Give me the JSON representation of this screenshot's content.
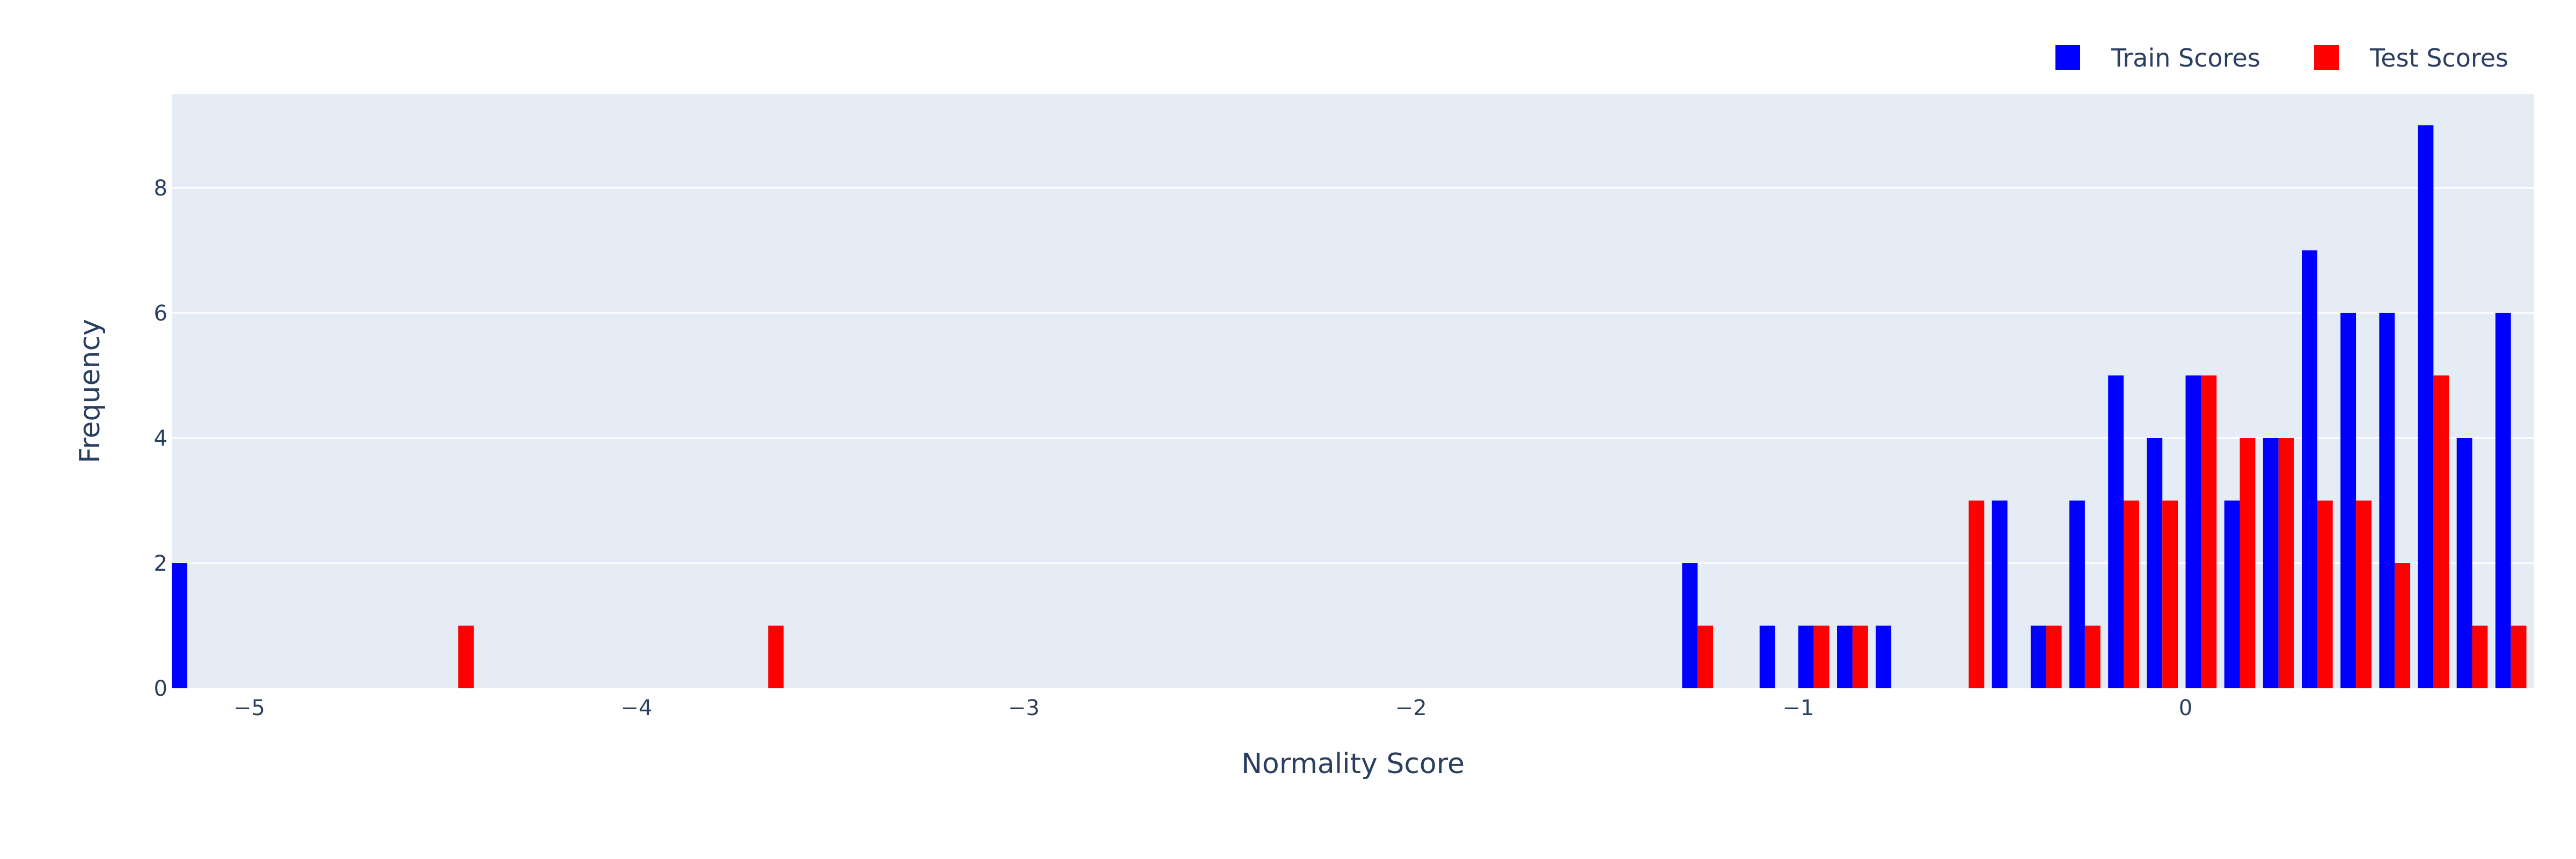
{
  "chart_data": {
    "type": "bar",
    "xlabel": "Normality Score",
    "ylabel": "Frequency",
    "xlim": [
      -5.2,
      0.9
    ],
    "ylim": [
      0,
      9.5
    ],
    "x_ticks": [
      -5,
      -4,
      -3,
      -2,
      -1,
      0
    ],
    "x_tick_labels": [
      "−5",
      "−4",
      "−3",
      "−2",
      "−1",
      "0"
    ],
    "y_ticks": [
      0,
      2,
      4,
      6,
      8
    ],
    "y_tick_labels": [
      "0",
      "2",
      "4",
      "6",
      "8"
    ],
    "bin_width": 0.1,
    "grid": true,
    "legend_position": "top-right",
    "plot_bg": "#E5ECF6",
    "series": [
      {
        "name": "Train Scores",
        "color": "#0000FF",
        "points": [
          {
            "x": -5.2,
            "y": 2
          },
          {
            "x": -1.3,
            "y": 2
          },
          {
            "x": -1.1,
            "y": 1
          },
          {
            "x": -1.0,
            "y": 1
          },
          {
            "x": -0.9,
            "y": 1
          },
          {
            "x": -0.8,
            "y": 1
          },
          {
            "x": -0.5,
            "y": 3
          },
          {
            "x": -0.4,
            "y": 1
          },
          {
            "x": -0.3,
            "y": 3
          },
          {
            "x": -0.2,
            "y": 5
          },
          {
            "x": -0.1,
            "y": 4
          },
          {
            "x": 0.0,
            "y": 5
          },
          {
            "x": 0.1,
            "y": 3
          },
          {
            "x": 0.2,
            "y": 4
          },
          {
            "x": 0.3,
            "y": 7
          },
          {
            "x": 0.4,
            "y": 6
          },
          {
            "x": 0.5,
            "y": 6
          },
          {
            "x": 0.6,
            "y": 9
          },
          {
            "x": 0.7,
            "y": 4
          },
          {
            "x": 0.8,
            "y": 6
          }
        ]
      },
      {
        "name": "Test Scores",
        "color": "#FF0000",
        "points": [
          {
            "x": -4.5,
            "y": 1
          },
          {
            "x": -3.7,
            "y": 1
          },
          {
            "x": -1.3,
            "y": 1
          },
          {
            "x": -1.0,
            "y": 1
          },
          {
            "x": -0.9,
            "y": 1
          },
          {
            "x": -0.6,
            "y": 3
          },
          {
            "x": -0.4,
            "y": 1
          },
          {
            "x": -0.3,
            "y": 1
          },
          {
            "x": -0.2,
            "y": 3
          },
          {
            "x": -0.1,
            "y": 3
          },
          {
            "x": 0.0,
            "y": 5
          },
          {
            "x": 0.1,
            "y": 4
          },
          {
            "x": 0.2,
            "y": 4
          },
          {
            "x": 0.3,
            "y": 3
          },
          {
            "x": 0.4,
            "y": 3
          },
          {
            "x": 0.5,
            "y": 2
          },
          {
            "x": 0.6,
            "y": 5
          },
          {
            "x": 0.7,
            "y": 1
          },
          {
            "x": 0.8,
            "y": 1
          }
        ]
      }
    ]
  }
}
